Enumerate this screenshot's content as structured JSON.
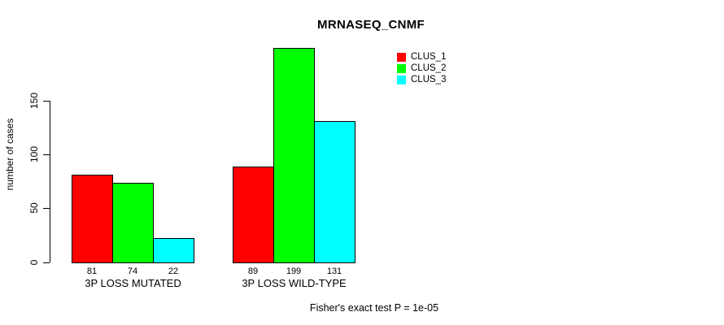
{
  "chart_data": {
    "type": "bar",
    "title": "MRNASEQ_CNMF",
    "ylabel": "number of cases",
    "xlabel": "",
    "categories": [
      "3P LOSS MUTATED",
      "3P LOSS WILD-TYPE"
    ],
    "series": [
      {
        "name": "CLUS_1",
        "color": "#ff0000",
        "values": [
          81,
          89
        ]
      },
      {
        "name": "CLUS_2",
        "color": "#00ff00",
        "values": [
          74,
          199
        ]
      },
      {
        "name": "CLUS_3",
        "color": "#00ffff",
        "values": [
          22,
          131
        ]
      }
    ],
    "bar_value_labels": [
      [
        81,
        74,
        22
      ],
      [
        89,
        199,
        131
      ]
    ],
    "yticks": [
      0,
      50,
      100,
      150
    ],
    "ylim": [
      0,
      199
    ],
    "grid": false,
    "legend_position": "top-right",
    "footnote": "Fisher's exact test P = 1e-05"
  }
}
